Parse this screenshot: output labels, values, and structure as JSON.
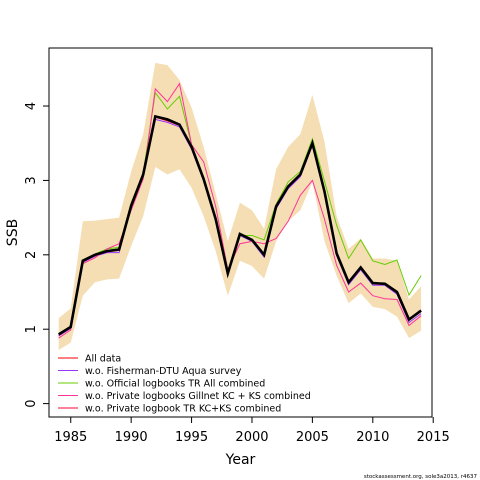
{
  "chart_data": {
    "type": "line",
    "xlabel": "Year",
    "ylabel": "SSB",
    "xlim": [
      1983.2,
      2014.9
    ],
    "ylim": [
      -0.18,
      4.78
    ],
    "xticks": [
      1985,
      1990,
      1995,
      2000,
      2005,
      2010,
      2015
    ],
    "yticks": [
      0,
      1,
      2,
      3,
      4
    ],
    "x": [
      1984,
      1985,
      1986,
      1987,
      1988,
      1989,
      1990,
      1991,
      1992,
      1993,
      1994,
      1995,
      1996,
      1997,
      1998,
      1999,
      2000,
      2001,
      2002,
      2003,
      2004,
      2005,
      2006,
      2007,
      2008,
      2009,
      2010,
      2011,
      2012,
      2013,
      2014
    ],
    "band": {
      "upper": [
        1.15,
        1.28,
        2.45,
        2.46,
        2.48,
        2.5,
        3.12,
        3.62,
        4.58,
        4.55,
        4.35,
        3.98,
        3.45,
        2.82,
        2.18,
        2.7,
        2.6,
        2.35,
        3.15,
        3.45,
        3.62,
        4.15,
        3.52,
        2.52,
        2.08,
        2.22,
        1.95,
        1.95,
        1.92,
        1.4,
        1.58
      ],
      "lower": [
        0.72,
        0.82,
        1.45,
        1.63,
        1.67,
        1.68,
        2.12,
        2.52,
        3.18,
        3.08,
        3.15,
        2.9,
        2.52,
        2.05,
        1.45,
        1.92,
        1.85,
        1.68,
        2.18,
        2.45,
        2.6,
        2.98,
        2.18,
        1.72,
        1.35,
        1.48,
        1.3,
        1.27,
        1.17,
        0.88,
        0.98
      ]
    },
    "estimate": [
      0.93,
      1.03,
      1.92,
      2.0,
      2.05,
      2.07,
      2.66,
      3.08,
      3.86,
      3.82,
      3.75,
      3.45,
      3.02,
      2.48,
      1.75,
      2.28,
      2.2,
      2.0,
      2.65,
      2.92,
      3.08,
      3.5,
      2.85,
      2.02,
      1.63,
      1.83,
      1.62,
      1.61,
      1.5,
      1.13,
      1.25
    ],
    "series": [
      {
        "name": "All data",
        "color": "#ff0000",
        "values": [
          0.93,
          1.03,
          1.92,
          2.0,
          2.05,
          2.07,
          2.66,
          3.08,
          3.86,
          3.82,
          3.75,
          3.45,
          3.02,
          2.48,
          1.75,
          2.28,
          2.2,
          2.0,
          2.65,
          2.92,
          3.08,
          3.5,
          2.85,
          2.02,
          1.63,
          1.83,
          1.62,
          1.61,
          1.5,
          1.13,
          1.25
        ]
      },
      {
        "name": "w.o. Fisherman-DTU Aqua survey",
        "color": "#9933ff",
        "values": [
          0.91,
          1.01,
          1.9,
          1.98,
          2.03,
          2.03,
          2.64,
          3.06,
          3.82,
          3.78,
          3.72,
          3.42,
          2.99,
          2.45,
          1.72,
          2.26,
          2.18,
          1.97,
          2.62,
          2.89,
          3.05,
          3.47,
          2.82,
          1.99,
          1.6,
          1.8,
          1.59,
          1.59,
          1.47,
          1.09,
          1.21
        ]
      },
      {
        "name": "w.o. Official logbooks TR All combined",
        "color": "#66cc00",
        "values": [
          0.94,
          1.04,
          1.93,
          2.01,
          2.08,
          2.1,
          2.7,
          3.1,
          4.18,
          3.96,
          4.13,
          3.48,
          3.03,
          2.5,
          1.78,
          2.26,
          2.26,
          2.2,
          2.68,
          2.98,
          3.12,
          3.56,
          2.99,
          2.4,
          1.95,
          2.2,
          1.92,
          1.87,
          1.93,
          1.46,
          1.72
        ]
      },
      {
        "name": "w.o. Private logbooks Gillnet KC + KS combined",
        "color": "#ff3399",
        "values": [
          0.88,
          0.99,
          1.88,
          1.96,
          2.08,
          2.15,
          2.6,
          3.02,
          4.23,
          4.06,
          4.3,
          3.48,
          3.25,
          2.65,
          1.8,
          2.15,
          2.18,
          2.15,
          2.22,
          2.45,
          2.8,
          3.0,
          2.48,
          1.86,
          1.5,
          1.62,
          1.45,
          1.41,
          1.4,
          1.05,
          1.18
        ]
      },
      {
        "name": "w.o. Private logbook TR KC+KS combined",
        "color": "#ff0033",
        "values": [
          0.92,
          1.02,
          1.91,
          1.99,
          2.04,
          2.06,
          2.65,
          3.07,
          3.85,
          3.8,
          3.74,
          3.44,
          3.01,
          2.47,
          1.74,
          2.27,
          2.19,
          1.99,
          2.64,
          2.91,
          3.07,
          3.49,
          2.84,
          2.01,
          1.62,
          1.82,
          1.61,
          1.6,
          1.49,
          1.12,
          1.24
        ]
      }
    ],
    "band_color": "#f5deb3",
    "estimate_color": "#000000",
    "legend_position": "bottom-left",
    "grid": false
  },
  "footer": "stockassessment.org, sole3a2013, r4637"
}
